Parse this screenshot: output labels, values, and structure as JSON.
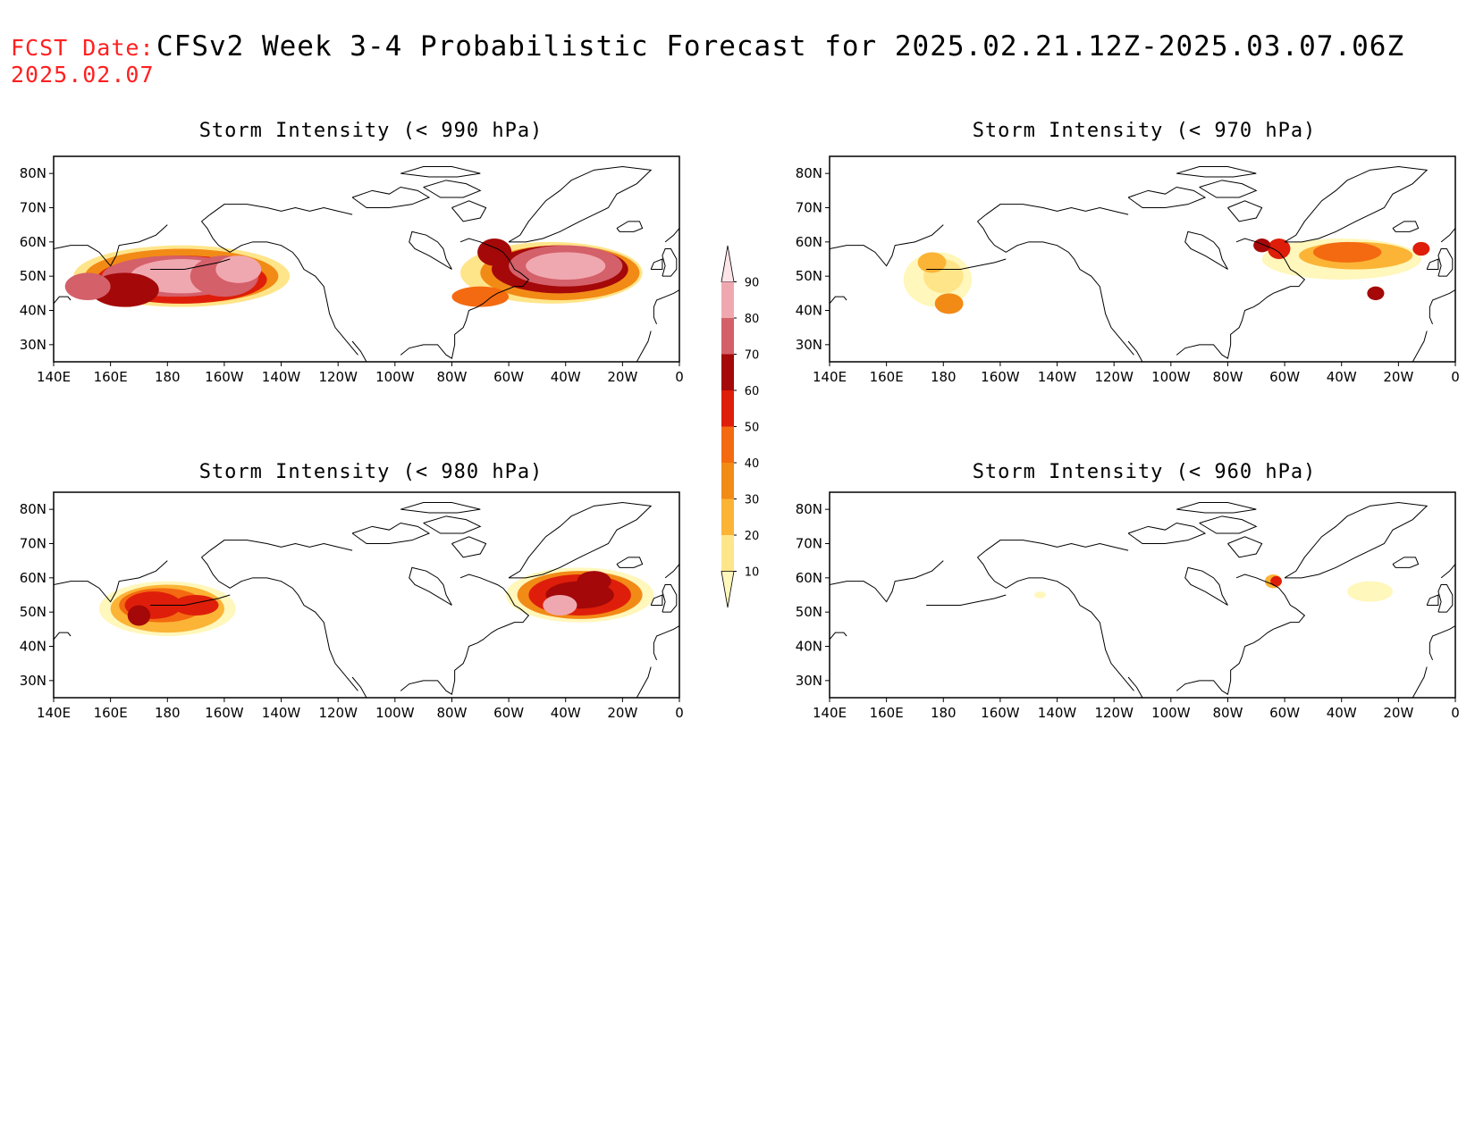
{
  "header": {
    "date_label": "FCST Date:",
    "date_value": "2025.02.07",
    "title": "CFSv2 Week 3-4 Probabilistic Forecast for 2025.02.21.12Z-2025.03.07.06Z",
    "label_color": "#ff2020"
  },
  "axes": {
    "lat_labels": [
      "80N",
      "70N",
      "60N",
      "50N",
      "40N",
      "30N"
    ],
    "lon_labels": [
      "140E",
      "160E",
      "180",
      "160W",
      "140W",
      "120W",
      "100W",
      "80W",
      "60W",
      "40W",
      "20W",
      "0"
    ]
  },
  "panels": [
    {
      "title": "Storm Intensity (< 990 hPa)"
    },
    {
      "title": "Storm Intensity (< 970 hPa)"
    },
    {
      "title": "Storm Intensity (< 980 hPa)"
    },
    {
      "title": "Storm Intensity (< 960 hPa)"
    }
  ],
  "colorbar": {
    "levels": [
      "10",
      "20",
      "30",
      "40",
      "50",
      "60",
      "70",
      "80",
      "90"
    ],
    "colors": [
      "#fff7bb",
      "#ffe58a",
      "#fbb436",
      "#f28a16",
      "#f46a10",
      "#de1e0a",
      "#a40808",
      "#d4606a",
      "#f0a8b0",
      "#fde4e8"
    ]
  }
}
